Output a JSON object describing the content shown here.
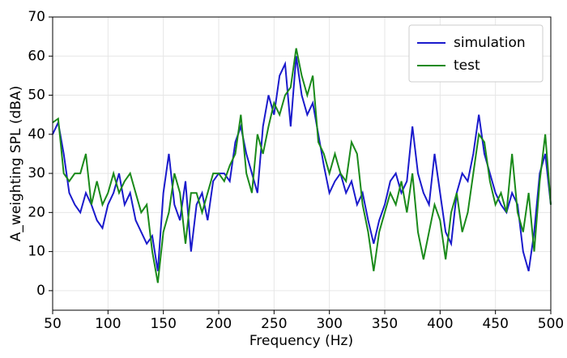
{
  "chart_data": {
    "type": "line",
    "xlabel": "Frequency (Hz)",
    "ylabel": "A_weighting SPL (dBA)",
    "x": [
      50,
      55,
      60,
      65,
      70,
      75,
      80,
      85,
      90,
      95,
      100,
      105,
      110,
      115,
      120,
      125,
      130,
      135,
      140,
      145,
      150,
      155,
      160,
      165,
      170,
      175,
      180,
      185,
      190,
      195,
      200,
      205,
      210,
      215,
      220,
      225,
      230,
      235,
      240,
      245,
      250,
      255,
      260,
      265,
      270,
      275,
      280,
      285,
      290,
      295,
      300,
      305,
      310,
      315,
      320,
      325,
      330,
      335,
      340,
      345,
      350,
      355,
      360,
      365,
      370,
      375,
      380,
      385,
      390,
      395,
      400,
      405,
      410,
      415,
      420,
      425,
      430,
      435,
      440,
      445,
      450,
      455,
      460,
      465,
      470,
      475,
      480,
      485,
      490,
      495,
      500
    ],
    "series": [
      {
        "name": "simulation",
        "color": "#1a1acc",
        "values": [
          40,
          43,
          35,
          25,
          22,
          20,
          25,
          22,
          18,
          16,
          22,
          25,
          30,
          22,
          25,
          18,
          15,
          12,
          14,
          5,
          25,
          35,
          22,
          18,
          28,
          10,
          22,
          25,
          18,
          28,
          30,
          30,
          28,
          38,
          42,
          35,
          30,
          25,
          42,
          50,
          45,
          55,
          58,
          42,
          60,
          50,
          45,
          48,
          40,
          32,
          25,
          28,
          30,
          25,
          28,
          22,
          25,
          18,
          12,
          18,
          22,
          28,
          30,
          25,
          28,
          42,
          30,
          25,
          22,
          35,
          25,
          15,
          12,
          25,
          30,
          28,
          35,
          45,
          35,
          30,
          25,
          22,
          20,
          25,
          22,
          10,
          5,
          15,
          30,
          35,
          22
        ]
      },
      {
        "name": "test",
        "color": "#1a8a1a",
        "values": [
          43,
          44,
          30,
          28,
          30,
          30,
          35,
          22,
          28,
          22,
          25,
          30,
          25,
          28,
          30,
          25,
          20,
          22,
          10,
          2,
          15,
          20,
          30,
          25,
          12,
          25,
          25,
          20,
          25,
          30,
          30,
          28,
          32,
          35,
          45,
          30,
          25,
          40,
          35,
          42,
          48,
          45,
          50,
          52,
          62,
          55,
          50,
          55,
          38,
          35,
          30,
          35,
          30,
          28,
          38,
          35,
          22,
          15,
          5,
          15,
          20,
          25,
          22,
          28,
          20,
          30,
          15,
          8,
          15,
          22,
          18,
          8,
          20,
          25,
          15,
          20,
          30,
          40,
          38,
          28,
          22,
          25,
          20,
          35,
          20,
          15,
          25,
          10,
          28,
          40,
          22
        ]
      }
    ],
    "xlim": [
      50,
      500
    ],
    "xticks": [
      50,
      100,
      150,
      200,
      250,
      300,
      350,
      400,
      450,
      500
    ],
    "ylim": [
      -5,
      70
    ],
    "yticks": [
      0,
      10,
      20,
      30,
      40,
      50,
      60,
      70
    ],
    "grid": true,
    "legend": "upper-right"
  }
}
